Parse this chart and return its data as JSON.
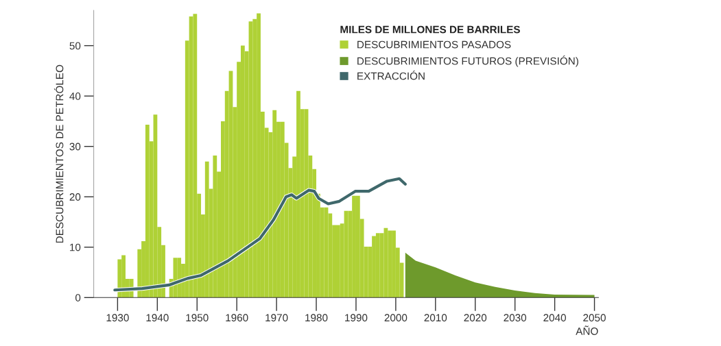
{
  "chart_data": {
    "type": "bar",
    "xlabel": "AÑO",
    "ylabel": "DESCUBRIMIENTOS DE PETRÓLEO",
    "legend_title": "MILES DE MILLONES DE BARRILES",
    "legend": "top right",
    "grid": false,
    "xlim": [
      1924,
      2051
    ],
    "ylim": [
      0,
      57
    ],
    "xticks": [
      1930,
      1940,
      1950,
      1960,
      1970,
      1980,
      1990,
      2000,
      2010,
      2020,
      2030,
      2040,
      2050
    ],
    "yticks": [
      0,
      10,
      20,
      30,
      40,
      50
    ],
    "series": [
      {
        "name": "DESCUBRIMIENTOS PASADOS",
        "color": "#afd136",
        "x": [
          1930,
          1931,
          1932,
          1933,
          1934,
          1935,
          1936,
          1937,
          1938,
          1939,
          1940,
          1941,
          1942,
          1943,
          1944,
          1945,
          1946,
          1947,
          1948,
          1949,
          1950,
          1951,
          1952,
          1953,
          1954,
          1955,
          1956,
          1957,
          1958,
          1959,
          1960,
          1961,
          1962,
          1963,
          1964,
          1965,
          1966,
          1967,
          1968,
          1969,
          1970,
          1971,
          1972,
          1973,
          1974,
          1975,
          1976,
          1977,
          1978,
          1979,
          1980,
          1981,
          1982,
          1983,
          1984,
          1985,
          1986,
          1987,
          1988,
          1989,
          1990,
          1991,
          1992,
          1993,
          1994,
          1995,
          1996,
          1997,
          1998,
          1999,
          2000,
          2001
        ],
        "values": [
          7.6,
          8.4,
          3.7,
          3.7,
          0,
          9.6,
          11.2,
          34.3,
          31,
          36.3,
          14,
          10.4,
          0,
          3.7,
          7.9,
          7.9,
          6.7,
          51,
          55.8,
          56.3,
          20.6,
          16.5,
          27,
          21.6,
          28.2,
          25,
          35,
          41,
          45,
          37.8,
          46.8,
          50,
          48.9,
          54.8,
          55.3,
          56.4,
          36.9,
          33.7,
          32.8,
          37.2,
          34.9,
          34.9,
          30.7,
          25.7,
          28,
          41,
          37.4,
          37.4,
          28.2,
          25.5,
          20.6,
          17.9,
          17.9,
          16.7,
          14.4,
          14.4,
          14.7,
          17.2,
          17.2,
          20.2,
          20.2,
          15.6,
          10.1,
          10.1,
          12.2,
          12.8,
          12.8,
          13.8,
          13.3,
          13.3,
          9.9,
          6.9
        ]
      },
      {
        "name": "DESCUBRIMIENTOS FUTUROS (PREVISIÓN)",
        "type": "area",
        "color": "#6e9a2c",
        "x": [
          2002.4,
          2005,
          2010,
          2015,
          2020,
          2025,
          2030,
          2035,
          2040,
          2050
        ],
        "values": [
          8.9,
          7.3,
          6.0,
          4.4,
          3.0,
          2.1,
          1.4,
          0.9,
          0.6,
          0.5
        ]
      },
      {
        "name": "EXTRACCIÓN",
        "type": "line",
        "color": "#3f686b",
        "x": [
          1929.3,
          1936.2,
          1943,
          1947.6,
          1951,
          1957.8,
          1963.6,
          1965.8,
          1969.3,
          1972.4,
          1973.8,
          1975,
          1978.1,
          1979.5,
          1980.6,
          1983,
          1985.8,
          1989.8,
          1993.2,
          1997.8,
          2000.9,
          2002.4
        ],
        "values": [
          1.5,
          1.8,
          2.5,
          3.8,
          4.4,
          7.3,
          10.5,
          11.7,
          15.5,
          20,
          20.4,
          19.7,
          21.3,
          21.1,
          19.7,
          18.6,
          19.1,
          21.1,
          21.1,
          23.1,
          23.6,
          22.5
        ]
      }
    ]
  }
}
